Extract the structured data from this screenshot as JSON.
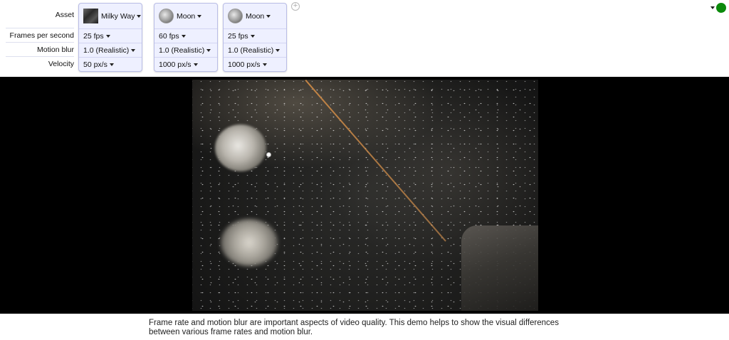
{
  "row_labels": {
    "asset": "Asset",
    "fps": "Frames per second",
    "motion_blur": "Motion blur",
    "velocity": "Velocity"
  },
  "cards": [
    {
      "asset": "Milky Way",
      "thumb": "milky-way-thumbnail",
      "fps": "25 fps",
      "motion_blur": "1.0 (Realistic)",
      "velocity": "50 px/s"
    },
    {
      "asset": "Moon",
      "thumb": "moon-thumbnail",
      "fps": "60 fps",
      "motion_blur": "1.0 (Realistic)",
      "velocity": "1000 px/s"
    },
    {
      "asset": "Moon",
      "thumb": "moon-thumbnail",
      "fps": "25 fps",
      "motion_blur": "1.0 (Realistic)",
      "velocity": "1000 px/s"
    }
  ],
  "add_button_label": "+",
  "status_color": "#0b8a0b",
  "description": "Frame rate and motion blur are important aspects of video quality. This demo helps to show the visual differences between various frame rates and motion blur."
}
